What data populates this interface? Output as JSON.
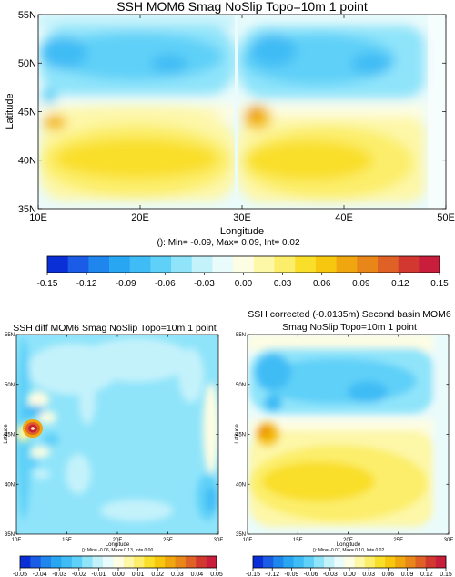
{
  "chart_data": [
    {
      "type": "heatmap",
      "title": "SSH MOM6 Smag NoSlip Topo=10m 1 point",
      "xlabel": "Longitude",
      "ylabel": "Latitude",
      "xticks": [
        "10E",
        "20E",
        "30E",
        "40E",
        "50E"
      ],
      "yticks": [
        "35N",
        "40N",
        "45N",
        "50N",
        "55N"
      ],
      "xlim": [
        10,
        50
      ],
      "ylim": [
        35,
        55
      ],
      "stats": "(): Min= -0.09, Max= 0.09, Int= 0.02",
      "colorbar": {
        "ticks": [
          "-0.15",
          "-0.12",
          "-0.09",
          "-0.06",
          "-0.03",
          "0.00",
          "0.03",
          "0.06",
          "0.09",
          "0.12",
          "0.15"
        ],
        "min": -0.15,
        "max": 0.15
      },
      "features": [
        {
          "kind": "basin",
          "lon": [
            10,
            30
          ],
          "lat": [
            35,
            55
          ]
        },
        {
          "kind": "basin",
          "lon": [
            30,
            48
          ],
          "lat": [
            35,
            55
          ]
        },
        {
          "kind": "gyre",
          "sign": "negative",
          "lat_center": 50,
          "value": -0.06
        },
        {
          "kind": "gyre",
          "sign": "positive",
          "lat_center": 40,
          "value": 0.05
        },
        {
          "kind": "peak",
          "lon": 32,
          "lat": 44.5,
          "value": 0.09
        },
        {
          "kind": "peak",
          "lon": 11,
          "lat": 44,
          "value": 0.07
        }
      ]
    },
    {
      "type": "heatmap",
      "title": "SSH diff MOM6 Smag NoSlip Topo=10m 1 point",
      "xlabel": "Longitude",
      "ylabel": "Latitude",
      "xticks": [
        "10E",
        "15E",
        "20E",
        "25E",
        "30E"
      ],
      "yticks": [
        "35N",
        "40N",
        "45N",
        "50N",
        "55N"
      ],
      "xlim": [
        10,
        30
      ],
      "ylim": [
        35,
        55
      ],
      "stats": "(): Min= -0.06, Max= 0.13, Int= 0.00",
      "colorbar": {
        "ticks": [
          "-0.05",
          "-0.04",
          "-0.03",
          "-0.02",
          "-0.01",
          "0.00",
          "0.01",
          "0.02",
          "0.03",
          "0.04",
          "0.05"
        ],
        "min": -0.05,
        "max": 0.05
      },
      "features": [
        {
          "kind": "peak",
          "lon": 11.5,
          "lat": 43,
          "value": 0.13
        },
        {
          "kind": "trough",
          "lon": 29,
          "lat": 38,
          "value": -0.06
        }
      ]
    },
    {
      "type": "heatmap",
      "title": "SSH corrected (-0.0135m) Second basin MOM6",
      "subtitle": "Smag NoSlip Topo=10m 1 point",
      "xlabel": "Longitude",
      "ylabel": "Latitude",
      "xticks": [
        "10E",
        "15E",
        "20E",
        "25E",
        "30E"
      ],
      "yticks": [
        "35N",
        "40N",
        "45N",
        "50N",
        "55N"
      ],
      "xlim": [
        10,
        30
      ],
      "ylim": [
        35,
        55
      ],
      "stats": "(): Min= -0.07, Max= 0.10, Int= 0.02",
      "colorbar": {
        "ticks": [
          "-0.15",
          "-0.12",
          "-0.09",
          "-0.06",
          "-0.03",
          "0.00",
          "0.03",
          "0.06",
          "0.09",
          "0.12",
          "0.15"
        ],
        "min": -0.15,
        "max": 0.15
      },
      "features": [
        {
          "kind": "gyre",
          "sign": "negative",
          "lat_center": 50,
          "value": -0.06
        },
        {
          "kind": "gyre",
          "sign": "positive",
          "lat_center": 40,
          "value": 0.05
        },
        {
          "kind": "peak",
          "lon": 11.5,
          "lat": 44.5,
          "value": 0.1
        }
      ]
    }
  ],
  "palette": [
    "#0a2fd6",
    "#1a5ce6",
    "#1f86ee",
    "#28a6f2",
    "#3fbcf5",
    "#5fd0f8",
    "#8fe4fa",
    "#c4f2fb",
    "#eafbfb",
    "#fdfde3",
    "#fdf7a8",
    "#fcee6b",
    "#f9df2a",
    "#f6c70e",
    "#f0a60f",
    "#e98619",
    "#df6125",
    "#d23830",
    "#c81e3b"
  ]
}
